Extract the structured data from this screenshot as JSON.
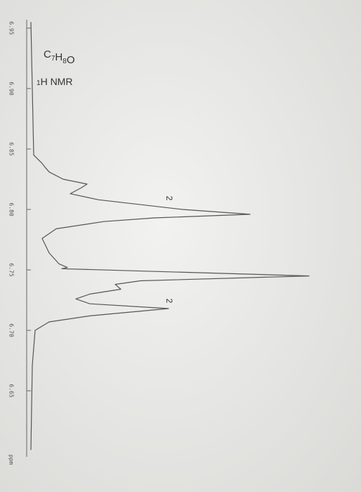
{
  "chart_data": {
    "type": "line",
    "title": "C7H8O",
    "subtitle": "1H NMR",
    "x_label": "ppm",
    "x": [
      6.955,
      6.9,
      6.845,
      6.838,
      6.835,
      6.831,
      6.825,
      6.821,
      6.818,
      6.813,
      6.808,
      6.8,
      6.796,
      6.793,
      6.79,
      6.784,
      6.776,
      6.764,
      6.755,
      6.752,
      6.751,
      6.745,
      6.741,
      6.738,
      6.734,
      6.73,
      6.726,
      6.722,
      6.718,
      6.712,
      6.707,
      6.7,
      6.671,
      6.601
    ],
    "values": [
      1,
      1.5,
      2,
      5,
      6,
      7.5,
      12.5,
      21,
      19,
      15,
      25,
      55,
      79,
      45,
      27,
      10,
      5,
      7.5,
      11,
      14,
      12,
      100,
      40,
      31,
      33,
      22,
      17,
      22,
      50,
      22,
      7.5,
      2.5,
      1.5,
      1
    ],
    "color": "#555555",
    "xlim": [
      6.96,
      6.6
    ],
    "xticks": [
      6.95,
      {
        "value": 6.9,
        "label": "6.90"
      },
      6.85,
      {
        "value": 6.8,
        "label": "6.80"
      },
      6.75,
      {
        "value": 6.7,
        "label": "6.70"
      },
      6.65
    ],
    "ylim": [
      0,
      100
    ],
    "annotations": [
      "2",
      "2"
    ]
  }
}
